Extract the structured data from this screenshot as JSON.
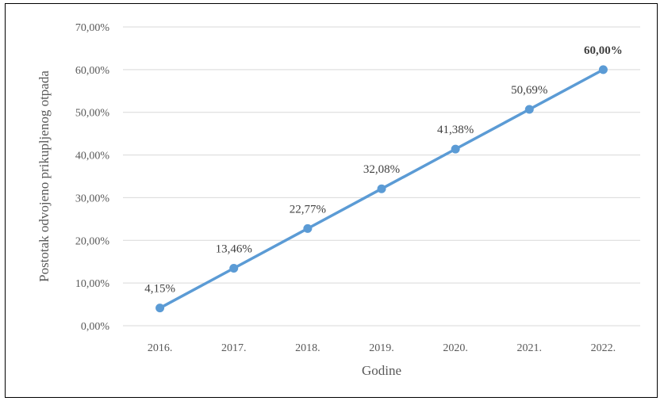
{
  "chart_data": {
    "type": "line",
    "categories": [
      "2016.",
      "2017.",
      "2018.",
      "2019.",
      "2020.",
      "2021.",
      "2022."
    ],
    "series": [
      {
        "values": [
          4.15,
          13.46,
          22.77,
          32.08,
          41.38,
          50.69,
          60.0
        ],
        "data_labels": [
          "4,15%",
          "13,46%",
          "22,77%",
          "32,08%",
          "41,38%",
          "50,69%",
          "60,00%"
        ],
        "bold_label_index": 6,
        "color": "#5b9bd5"
      }
    ],
    "title": "",
    "xlabel": "Godine",
    "ylabel": "Postotak odvojeno prikupljenog otpada",
    "ylim": [
      0,
      70
    ],
    "y_ticks": [
      0,
      10,
      20,
      30,
      40,
      50,
      60,
      70
    ],
    "y_tick_labels": [
      "0,00%",
      "10,00%",
      "20,00%",
      "30,00%",
      "40,00%",
      "50,00%",
      "60,00%",
      "70,00%"
    ],
    "grid": true,
    "gridline_color": "#d9d9d9",
    "legend": "none"
  }
}
